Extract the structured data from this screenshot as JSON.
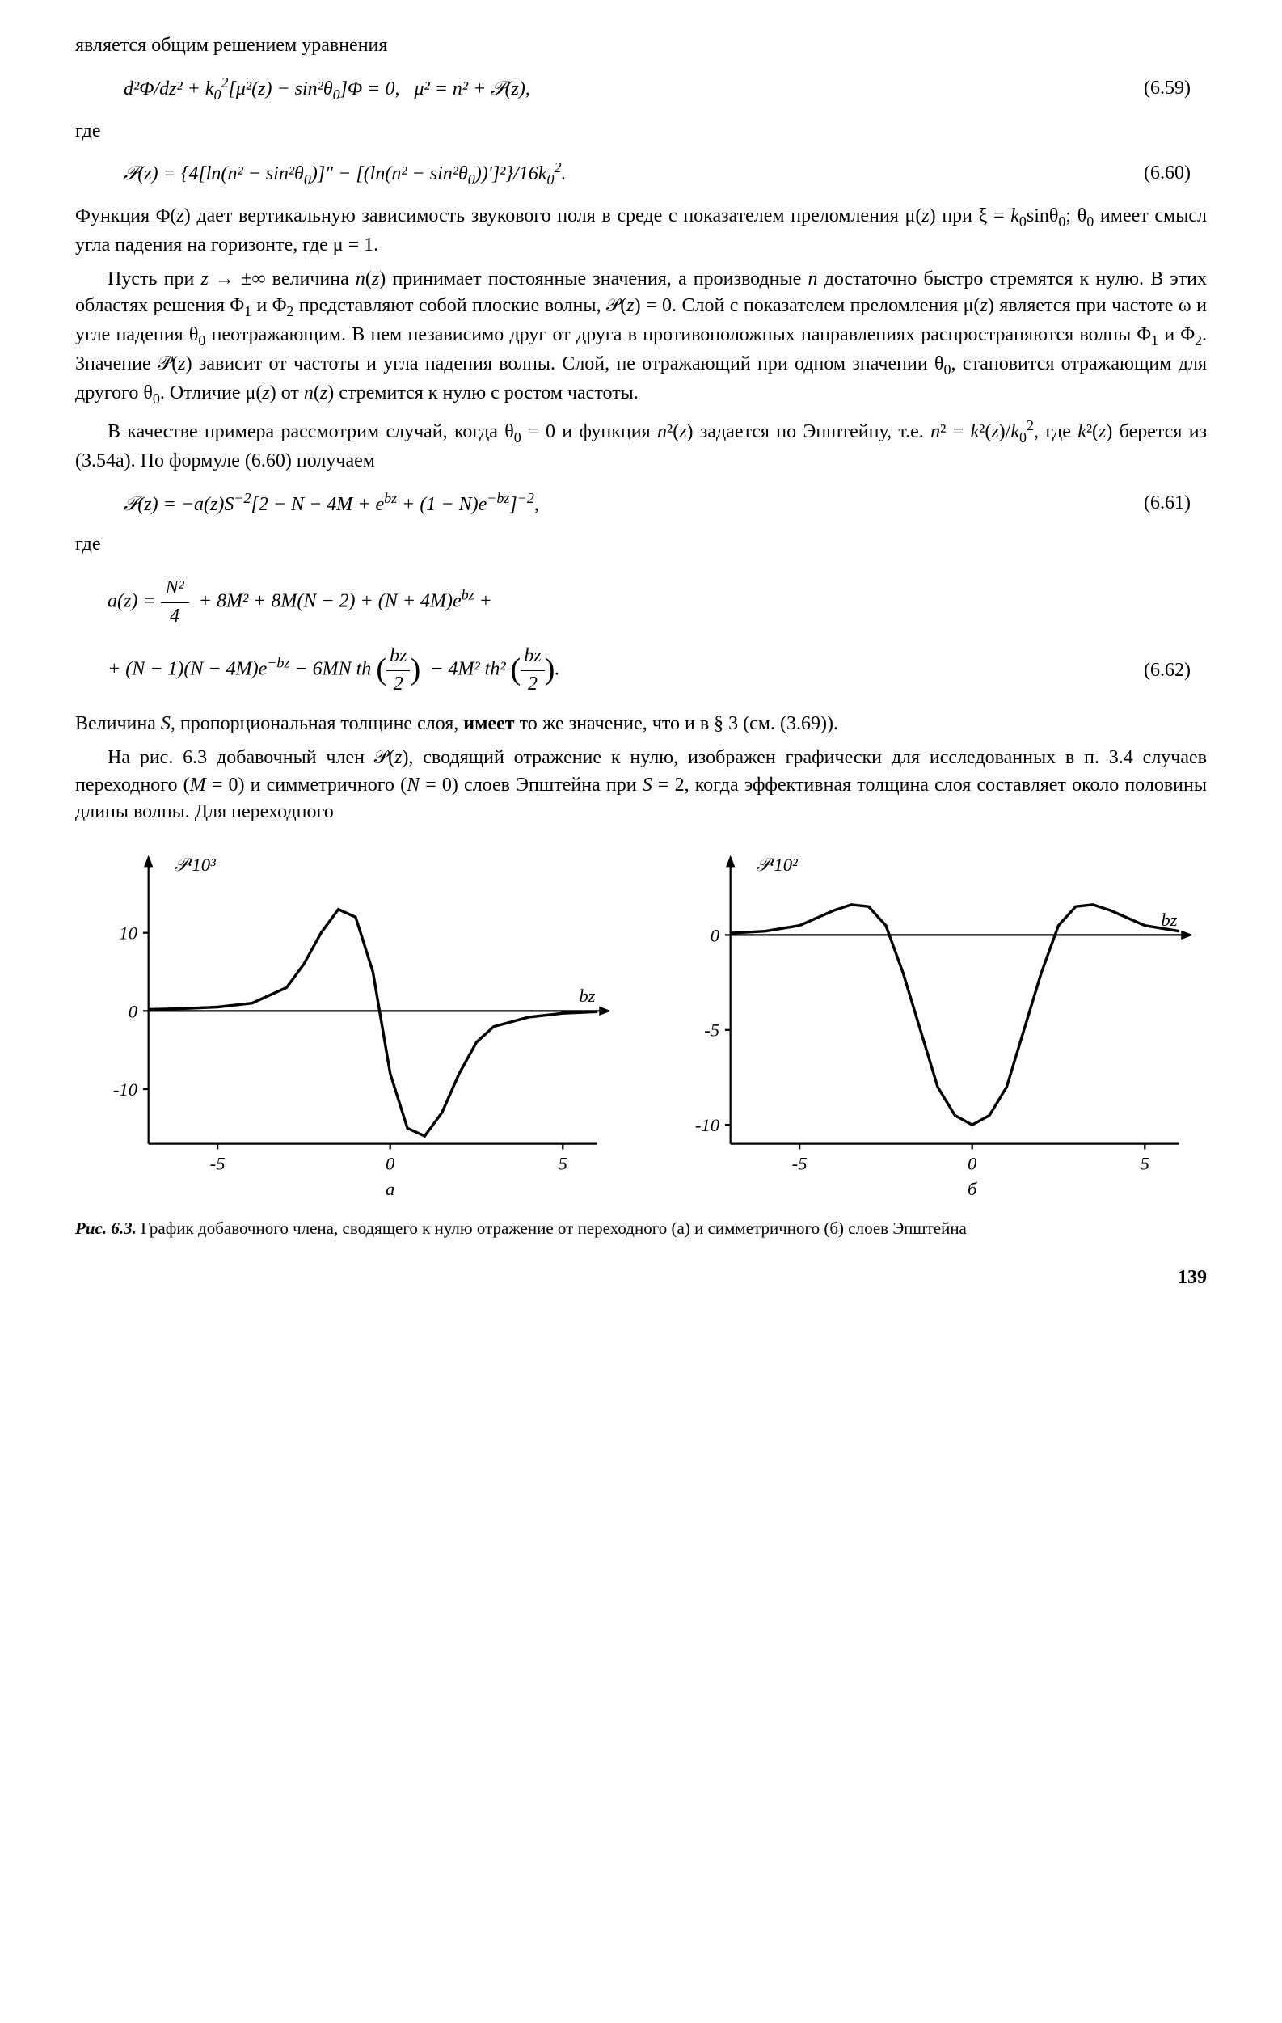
{
  "text": {
    "p1": "является общим решением уравнения",
    "eq659": "d²Φ/dz² + k₀²[μ²(z) − sin²θ₀]Φ = 0,   μ² = n² + 𝒫(z),",
    "eq659_num": "(6.59)",
    "where1": "где",
    "eq660": "𝒫(z) = {4[ln(n² − sin²θ₀)]″ − [(ln(n² − sin²θ₀))′]²}/16k₀².",
    "eq660_num": "(6.60)",
    "p2": "Функция Φ(z) дает вертикальную зависимость звукового поля в среде с показателем преломления μ(z) при ξ = k₀sinθ₀; θ₀ имеет смысл угла падения на горизонте, где μ = 1.",
    "p3": "Пусть при z → ±∞ величина n(z) принимает постоянные значения, а производные n достаточно быстро стремятся к нулю. В этих областях решения Φ₁ и Φ₂ представляют собой плоские волны, 𝒫(z) = 0. Слой с показателем преломления μ(z) является при частоте ω и угле падения θ₀ неотражающим. В нем независимо друг от друга в противоположных направлениях распространяются волны Φ₁ и Φ₂. Значение 𝒫(z) зависит от частоты и угла падения волны. Слой, не отражающий при одном значении θ₀, становится отражающим для другого θ₀. Отличие μ(z) от n(z) стремится к нулю с ростом частоты.",
    "p4": "В качестве примера рассмотрим случай, когда θ₀ = 0 и функция n²(z) задается по Эпштейну, т.е. n² = k²(z)/k₀², где k²(z) берется из (3.54а). По формуле (6.60) получаем",
    "eq661": "𝒫(z) = −a(z)S⁻²[2 − N − 4M + eᵇᶻ + (1 − N)e⁻ᵇᶻ]⁻²,",
    "eq661_num": "(6.61)",
    "where2": "где",
    "eq662_line1": "a(z) = N²/4 + 8M² + 8M(N − 2) + (N + 4M)eᵇᶻ +",
    "eq662_line2": "+ (N − 1)(N − 4M)e⁻ᵇᶻ − 6MN th(bz/2) − 4M² th²(bz/2).",
    "eq662_num": "(6.62)",
    "p5": "Величина S, пропорциональная толщине слоя, имеет то же значение, что и в § 3 (см. (3.69)).",
    "p6": "На рис. 6.3 добавочный член 𝒫(z), сводящий отражение к нулю, изображен графически для исследованных в п. 3.4 случаев переходного (M = 0) и симметричного (N = 0) слоев Эпштейна при S = 2, когда эффективная толщина слоя составляет около половины длины волны. Для переходного",
    "caption_prefix": "Рис. 6.3.",
    "caption_text": " График добавочного члена, сводящего к нулю отражение от переходного (а) и симметричного (б) слоев Эпштейна",
    "page_num": "139"
  },
  "charts": {
    "panel_a": {
      "type": "line",
      "y_axis_label": "𝒫·10³",
      "x_axis_label": "bz",
      "panel_label": "а",
      "xlim": [
        -7,
        6
      ],
      "ylim": [
        -17,
        17
      ],
      "xticks": [
        -5,
        0,
        5
      ],
      "yticks": [
        -10,
        0,
        10
      ],
      "line_color": "#000000",
      "line_width": 3,
      "axis_color": "#000000",
      "tick_fontsize": 20,
      "label_fontsize": 20,
      "data_x": [
        -7,
        -6,
        -5,
        -4,
        -3,
        -2.5,
        -2,
        -1.5,
        -1,
        -0.5,
        0,
        0.5,
        1,
        1.5,
        2,
        2.5,
        3,
        4,
        5,
        6
      ],
      "data_y": [
        0.2,
        0.3,
        0.5,
        1,
        3,
        6,
        10,
        13,
        12,
        5,
        -8,
        -15,
        -16,
        -13,
        -8,
        -4,
        -2,
        -0.8,
        -0.3,
        -0.1
      ]
    },
    "panel_b": {
      "type": "line",
      "y_axis_label": "𝒫·10²",
      "x_axis_label": "bz",
      "panel_label": "б",
      "xlim": [
        -7,
        6
      ],
      "ylim": [
        -11,
        3
      ],
      "xticks": [
        -5,
        0,
        5
      ],
      "yticks": [
        -10,
        -5,
        0
      ],
      "line_color": "#000000",
      "line_width": 3,
      "axis_color": "#000000",
      "tick_fontsize": 20,
      "label_fontsize": 20,
      "data_x": [
        -7,
        -6,
        -5,
        -4,
        -3.5,
        -3,
        -2.5,
        -2,
        -1.5,
        -1,
        -0.5,
        0,
        0.5,
        1,
        1.5,
        2,
        2.5,
        3,
        3.5,
        4,
        5,
        6
      ],
      "data_y": [
        0.1,
        0.2,
        0.5,
        1.3,
        1.6,
        1.5,
        0.5,
        -2,
        -5,
        -8,
        -9.5,
        -10,
        -9.5,
        -8,
        -5,
        -2,
        0.5,
        1.5,
        1.6,
        1.3,
        0.5,
        0.2
      ]
    }
  }
}
